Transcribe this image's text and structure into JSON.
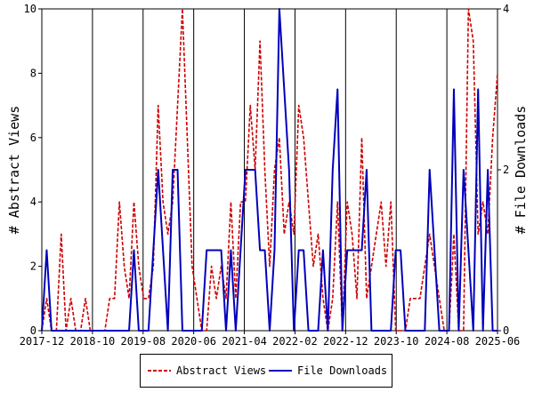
{
  "chart_data": {
    "type": "line",
    "title": "",
    "x_tick_labels": [
      "2017-12",
      "2018-10",
      "2019-08",
      "2020-06",
      "2021-04",
      "2022-02",
      "2022-12",
      "2023-10",
      "2024-08",
      "2025-06"
    ],
    "y_left": {
      "label": "# Abstract Views",
      "range": [
        0,
        10
      ],
      "ticks": [
        0,
        2,
        4,
        6,
        8,
        10
      ]
    },
    "y_right": {
      "label": "# File Downloads",
      "range": [
        0,
        4
      ],
      "ticks": [
        0,
        2,
        4
      ]
    },
    "grid": "vertical",
    "legend_placement": "bottom-center",
    "series": [
      {
        "name": "Abstract Views",
        "axis": "left",
        "color": "#cc0000",
        "style": "dashed",
        "values": [
          0,
          1,
          0,
          0,
          3,
          0,
          1,
          0,
          0,
          1,
          0,
          0,
          0,
          0,
          1,
          1,
          4,
          2,
          1,
          4,
          2,
          1,
          1,
          2,
          7,
          4,
          3,
          4,
          7,
          10,
          6,
          2,
          1,
          0,
          0,
          2,
          1,
          2,
          1,
          4,
          1,
          4,
          4,
          7,
          5,
          9,
          5,
          2,
          5,
          6,
          3,
          4,
          3,
          7,
          6,
          4,
          2,
          3,
          1,
          0,
          1,
          4,
          0,
          4,
          3,
          1,
          6,
          1,
          2,
          3,
          4,
          2,
          4,
          0,
          0,
          0,
          1,
          1,
          1,
          2,
          3,
          2,
          1,
          0,
          0,
          3,
          0,
          0,
          10,
          9,
          3,
          4,
          3,
          6,
          8
        ]
      },
      {
        "name": "File Downloads",
        "axis": "right",
        "values": [
          0,
          1,
          0,
          0,
          0,
          0,
          0,
          0,
          0,
          0,
          0,
          0,
          0,
          0,
          0,
          0,
          0,
          0,
          0,
          1,
          0,
          0,
          0,
          1,
          2,
          1,
          0,
          2,
          2,
          0,
          0,
          0,
          0,
          0,
          1,
          1,
          1,
          1,
          0,
          1,
          0,
          1,
          2,
          2,
          2,
          1,
          1,
          0,
          1,
          4,
          3,
          2,
          0,
          1,
          1,
          0,
          0,
          0,
          1,
          0,
          2,
          3,
          0,
          1,
          1,
          1,
          1,
          2,
          0,
          0,
          0,
          0,
          0,
          1,
          1,
          0,
          0,
          0,
          0,
          0,
          2,
          1,
          0,
          0,
          0,
          3,
          0,
          2,
          1,
          0,
          3,
          0,
          2,
          0,
          0
        ],
        "color": "#0000bb",
        "style": "solid"
      }
    ]
  }
}
